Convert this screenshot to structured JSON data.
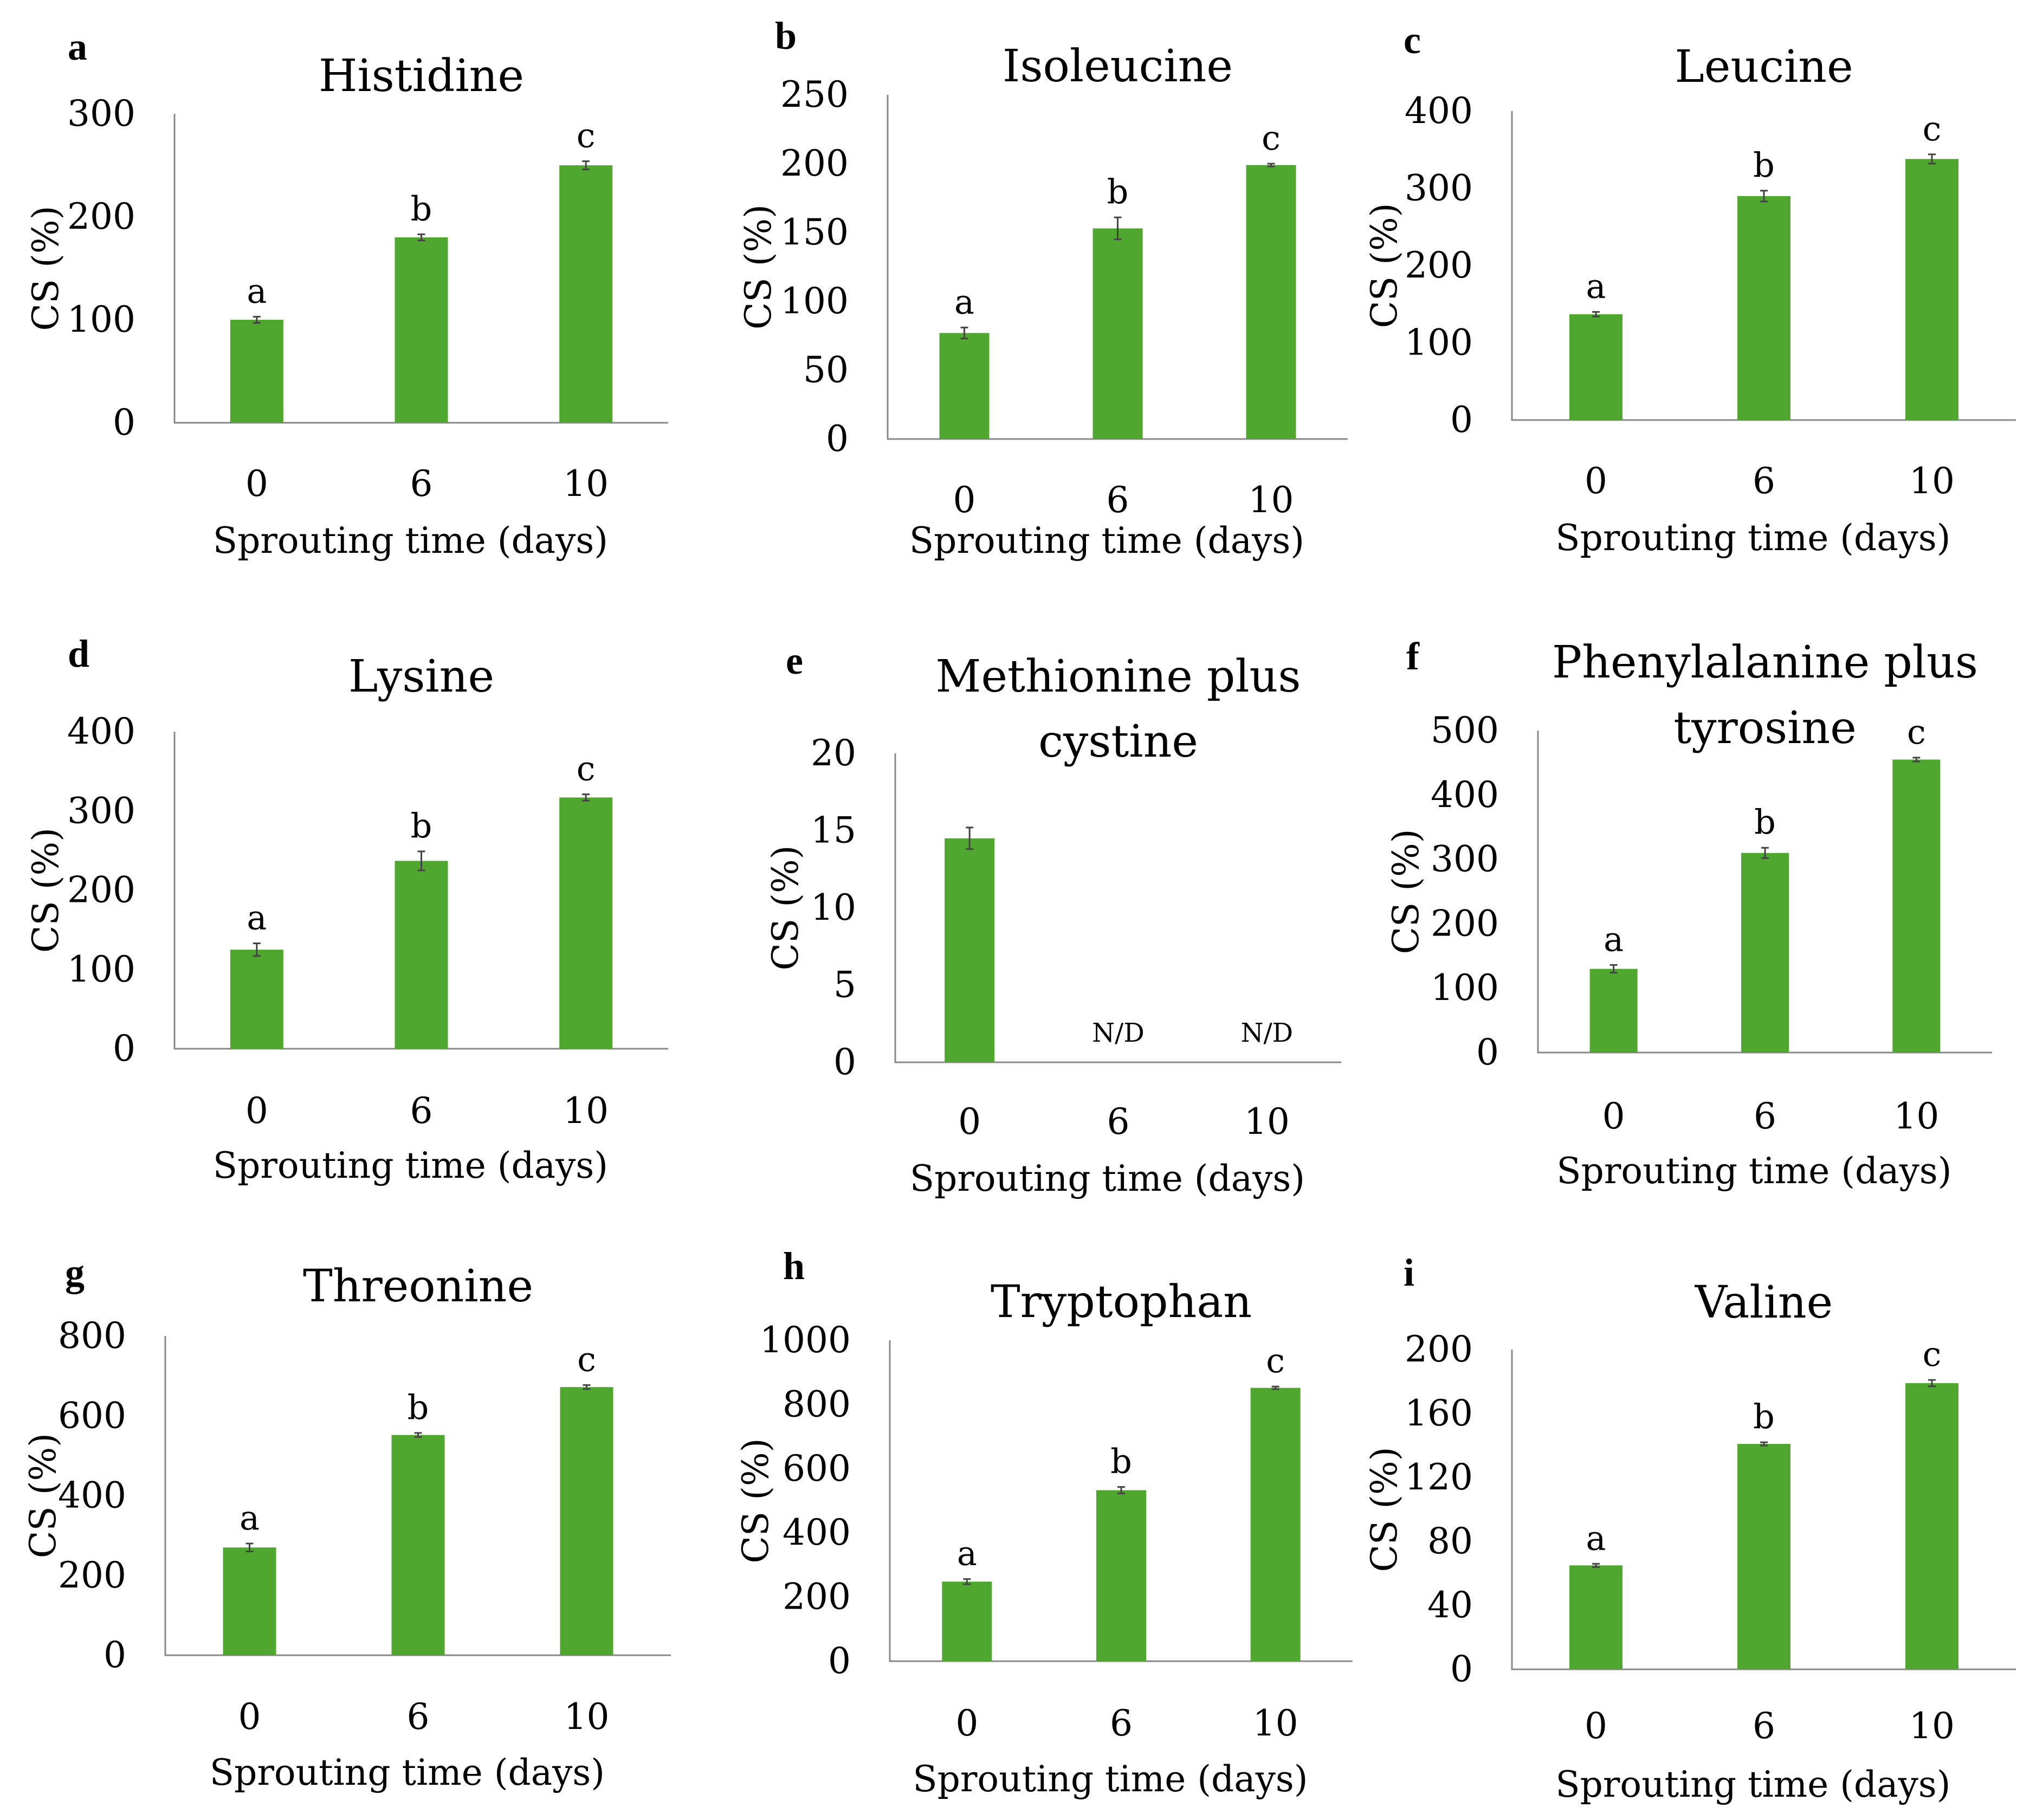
{
  "colors": {
    "bar": "#4FA72F",
    "axis": "#888888",
    "error": "#444444",
    "text": "#000000"
  },
  "chart_data": [
    {
      "type": "bar",
      "panel": "a",
      "title": [
        "Histidine"
      ],
      "xlabel": "Sprouting time (days)",
      "ylabel": "CS (%)",
      "categories": [
        "0",
        "6",
        "10"
      ],
      "values": [
        100,
        180,
        250
      ],
      "errors": [
        3,
        3,
        4
      ],
      "ylim": [
        0,
        300
      ],
      "yticks": [
        "0",
        "100",
        "200",
        "300"
      ],
      "labels": [
        "a",
        "b",
        "c"
      ]
    },
    {
      "type": "bar",
      "panel": "b",
      "title": [
        "Isoleucine"
      ],
      "xlabel": "Sprouting time (days)",
      "ylabel": "CS (%)",
      "categories": [
        "0",
        "6",
        "10"
      ],
      "values": [
        77,
        153,
        199
      ],
      "errors": [
        4,
        8,
        1
      ],
      "ylim": [
        0,
        250
      ],
      "yticks": [
        "0",
        "50",
        "100",
        "150",
        "200",
        "250"
      ],
      "labels": [
        "a",
        "b",
        "c"
      ]
    },
    {
      "type": "bar",
      "panel": "c",
      "title": [
        "Leucine"
      ],
      "xlabel": "Sprouting time (days)",
      "ylabel": "CS (%)",
      "categories": [
        "0",
        "6",
        "10"
      ],
      "values": [
        137,
        290,
        338
      ],
      "errors": [
        3,
        7,
        6
      ],
      "ylim": [
        0,
        400
      ],
      "yticks": [
        "0",
        "100",
        "200",
        "300",
        "400"
      ],
      "labels": [
        "a",
        "b",
        "c"
      ]
    },
    {
      "type": "bar",
      "panel": "d",
      "title": [
        "Lysine"
      ],
      "xlabel": "Sprouting time (days)",
      "ylabel": "CS (%)",
      "categories": [
        "0",
        "6",
        "10"
      ],
      "values": [
        125,
        237,
        317
      ],
      "errors": [
        8,
        12,
        4
      ],
      "ylim": [
        0,
        400
      ],
      "yticks": [
        "0",
        "100",
        "200",
        "300",
        "400"
      ],
      "labels": [
        "a",
        "b",
        "c"
      ]
    },
    {
      "type": "bar",
      "panel": "e",
      "title": [
        "Methionine plus",
        "cystine"
      ],
      "xlabel": "Sprouting time (days)",
      "ylabel": "CS (%)",
      "categories": [
        "0",
        "6",
        "10"
      ],
      "values": [
        14.5,
        0,
        0
      ],
      "errors": [
        0.7,
        0,
        0
      ],
      "ylim": [
        0,
        20
      ],
      "yticks": [
        "0",
        "5",
        "10",
        "15",
        "20"
      ],
      "labels": [
        "",
        "N/D",
        "N/D"
      ]
    },
    {
      "type": "bar",
      "panel": "f",
      "title": [
        "Phenylalanine plus",
        "tyrosine"
      ],
      "xlabel": "Sprouting time (days)",
      "ylabel": "CS (%)",
      "categories": [
        "0",
        "6",
        "10"
      ],
      "values": [
        130,
        310,
        455
      ],
      "errors": [
        6,
        8,
        3
      ],
      "ylim": [
        0,
        500
      ],
      "yticks": [
        "0",
        "100",
        "200",
        "300",
        "400",
        "500"
      ],
      "labels": [
        "a",
        "b",
        "c"
      ]
    },
    {
      "type": "bar",
      "panel": "g",
      "title": [
        "Threonine"
      ],
      "xlabel": "Sprouting time (days)",
      "ylabel": "CS (%)",
      "categories": [
        "0",
        "6",
        "10"
      ],
      "values": [
        270,
        552,
        672
      ],
      "errors": [
        10,
        5,
        5
      ],
      "ylim": [
        0,
        800
      ],
      "yticks": [
        "0",
        "200",
        "400",
        "600",
        "800"
      ],
      "labels": [
        "a",
        "b",
        "c"
      ]
    },
    {
      "type": "bar",
      "panel": "h",
      "title": [
        "Tryptophan"
      ],
      "xlabel": "Sprouting time (days)",
      "ylabel": "CS (%)",
      "categories": [
        "0",
        "6",
        "10"
      ],
      "values": [
        248,
        533,
        852
      ],
      "errors": [
        8,
        10,
        4
      ],
      "ylim": [
        0,
        1000
      ],
      "yticks": [
        "0",
        "200",
        "400",
        "600",
        "800",
        "1000"
      ],
      "labels": [
        "a",
        "b",
        "c"
      ]
    },
    {
      "type": "bar",
      "panel": "i",
      "title": [
        "Valine"
      ],
      "xlabel": "Sprouting time (days)",
      "ylabel": "CS (%)",
      "categories": [
        "0",
        "6",
        "10"
      ],
      "values": [
        65,
        141,
        179
      ],
      "errors": [
        1,
        1,
        2
      ],
      "ylim": [
        0,
        200
      ],
      "yticks": [
        "0",
        "40",
        "80",
        "120",
        "160",
        "200"
      ],
      "labels": [
        "a",
        "b",
        "c"
      ]
    }
  ]
}
